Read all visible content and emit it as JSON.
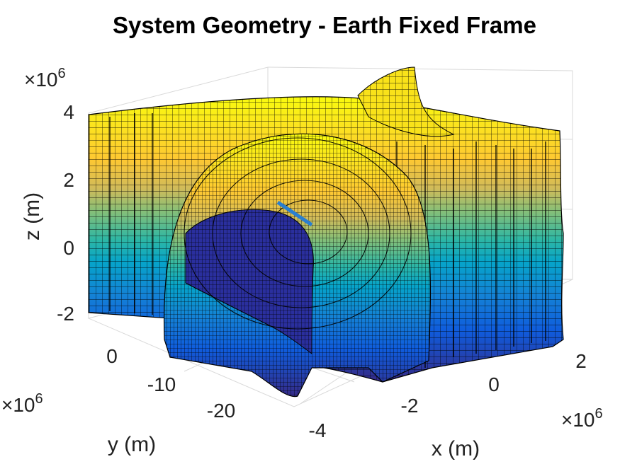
{
  "chart_data": {
    "type": "surface3d",
    "title": "System Geometry - Earth Fixed Frame",
    "xlabel": "x (m)",
    "ylabel": "y (m)",
    "zlabel": "z (m)",
    "x_ticks": [
      "-4",
      "-2",
      "0",
      "2"
    ],
    "y_ticks": [
      "0",
      "-10",
      "-20"
    ],
    "z_ticks": [
      "4",
      "2",
      "0",
      "-2"
    ],
    "x_exponent": "×10^6",
    "y_exponent": "×10^6",
    "z_exponent": "×10^6",
    "colormap": "parula",
    "grid": true,
    "legend": "none",
    "colormap_colors": [
      "#352a87",
      "#0f5cdd",
      "#1481d6",
      "#06a4ca",
      "#2eb7a4",
      "#87bf77",
      "#d1bb59",
      "#fec832",
      "#f9fb0e"
    ]
  },
  "exponents": {
    "z": {
      "base": "×10",
      "power": "6"
    },
    "y": {
      "base": "×10",
      "power": "6"
    },
    "x": {
      "base": "×10",
      "power": "6"
    }
  }
}
